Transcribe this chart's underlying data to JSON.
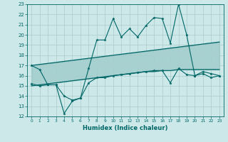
{
  "xlabel": "Humidex (Indice chaleur)",
  "xlim": [
    -0.5,
    23.5
  ],
  "ylim": [
    12,
    23
  ],
  "yticks": [
    12,
    13,
    14,
    15,
    16,
    17,
    18,
    19,
    20,
    21,
    22,
    23
  ],
  "xticks": [
    0,
    1,
    2,
    3,
    4,
    5,
    6,
    7,
    8,
    9,
    10,
    11,
    12,
    13,
    14,
    15,
    16,
    17,
    18,
    19,
    20,
    21,
    22,
    23
  ],
  "bg_color": "#cce8e8",
  "line_color": "#006666",
  "grid_color": "#aacccc",
  "line1_x": [
    0,
    1,
    2,
    3,
    4,
    5,
    6,
    7,
    8,
    9,
    10,
    11,
    12,
    13,
    14,
    15,
    16,
    17,
    18,
    19,
    20,
    21,
    22,
    23
  ],
  "line1_y": [
    17.0,
    16.6,
    15.1,
    15.1,
    14.0,
    13.6,
    13.8,
    16.7,
    19.5,
    19.5,
    21.6,
    19.8,
    20.6,
    19.8,
    20.9,
    21.7,
    21.6,
    19.2,
    23.0,
    20.0,
    16.0,
    16.4,
    16.2,
    16.0
  ],
  "line2_x": [
    0,
    1,
    2,
    3,
    4,
    5,
    6,
    7,
    8,
    9,
    10,
    11,
    12,
    13,
    14,
    15,
    16,
    17,
    18,
    19,
    20,
    21,
    22,
    23
  ],
  "line2_y": [
    17.0,
    17.1,
    17.2,
    17.3,
    17.4,
    17.5,
    17.6,
    17.7,
    17.8,
    17.9,
    18.0,
    18.1,
    18.2,
    18.3,
    18.4,
    18.5,
    18.6,
    18.7,
    18.8,
    18.9,
    19.0,
    19.1,
    19.2,
    19.3
  ],
  "line3_x": [
    0,
    1,
    2,
    3,
    4,
    5,
    6,
    7,
    8,
    9,
    10,
    11,
    12,
    13,
    14,
    15,
    16,
    17,
    18,
    19,
    20,
    21,
    22,
    23
  ],
  "line3_y": [
    15.2,
    15.0,
    15.1,
    15.1,
    12.3,
    13.5,
    13.8,
    15.3,
    15.8,
    15.8,
    16.0,
    16.1,
    16.2,
    16.3,
    16.4,
    16.5,
    16.5,
    15.3,
    16.7,
    16.1,
    16.0,
    16.2,
    15.8,
    16.0
  ],
  "line4_x": [
    0,
    1,
    2,
    3,
    4,
    5,
    6,
    7,
    8,
    9,
    10,
    11,
    12,
    13,
    14,
    15,
    16,
    17,
    18,
    19,
    20,
    21,
    22,
    23
  ],
  "line4_y": [
    15.0,
    15.1,
    15.2,
    15.3,
    15.4,
    15.5,
    15.6,
    15.7,
    15.8,
    15.9,
    16.0,
    16.1,
    16.2,
    16.3,
    16.4,
    16.4,
    16.5,
    16.5,
    16.6,
    16.6,
    16.6,
    16.6,
    16.6,
    16.6
  ]
}
